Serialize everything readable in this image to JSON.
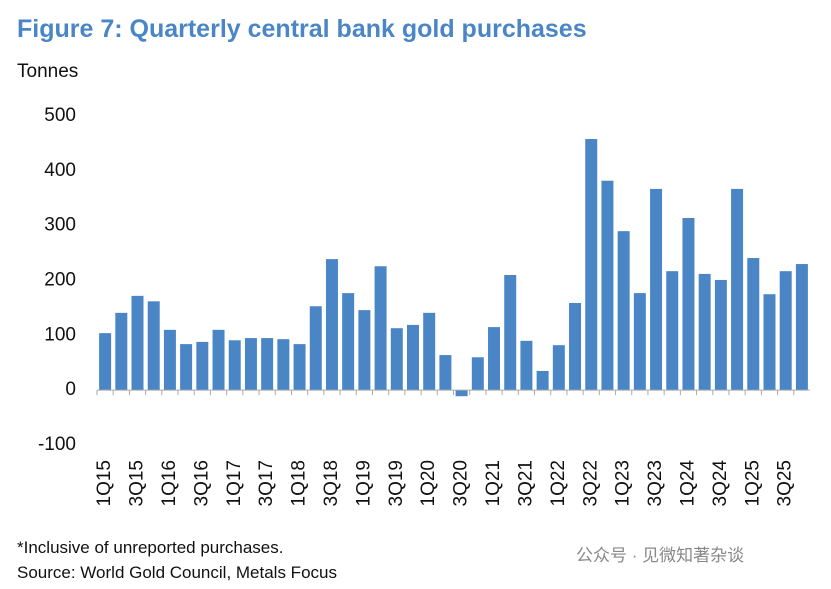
{
  "chart_data": {
    "type": "bar",
    "title": "Figure 7: Quarterly central bank gold purchases",
    "ylabel": "Tonnes",
    "categories": [
      "1Q15",
      null,
      "3Q15",
      null,
      "1Q16",
      null,
      "3Q16",
      null,
      "1Q17",
      null,
      "3Q17",
      null,
      "1Q18",
      null,
      "3Q18",
      null,
      "1Q19",
      null,
      "3Q19",
      null,
      "1Q20",
      null,
      "3Q20",
      null,
      "1Q21",
      null,
      "3Q21",
      null,
      "1Q22",
      null,
      "3Q22",
      null,
      "1Q23",
      null,
      "3Q23",
      null,
      "1Q24",
      null,
      "3Q24",
      null,
      "1Q25",
      null,
      "3Q25",
      null
    ],
    "values": [
      104,
      141,
      172,
      162,
      110,
      84,
      88,
      110,
      91,
      95,
      95,
      93,
      84,
      153,
      239,
      177,
      146,
      226,
      113,
      119,
      141,
      64,
      -11,
      60,
      115,
      210,
      90,
      35,
      82,
      159,
      458,
      382,
      290,
      177,
      367,
      217,
      314,
      212,
      201,
      367,
      241,
      175,
      217,
      230
    ],
    "color": "#4a86c5",
    "ylim": [
      -100,
      500
    ],
    "yticks": [
      -100,
      0,
      100,
      200,
      300,
      400,
      500
    ],
    "grid": false,
    "notes": [
      "*Inclusive of unreported purchases.",
      "Source: World Gold Council, Metals Focus"
    ],
    "watermark": "公众号 · 见微知著杂谈"
  }
}
